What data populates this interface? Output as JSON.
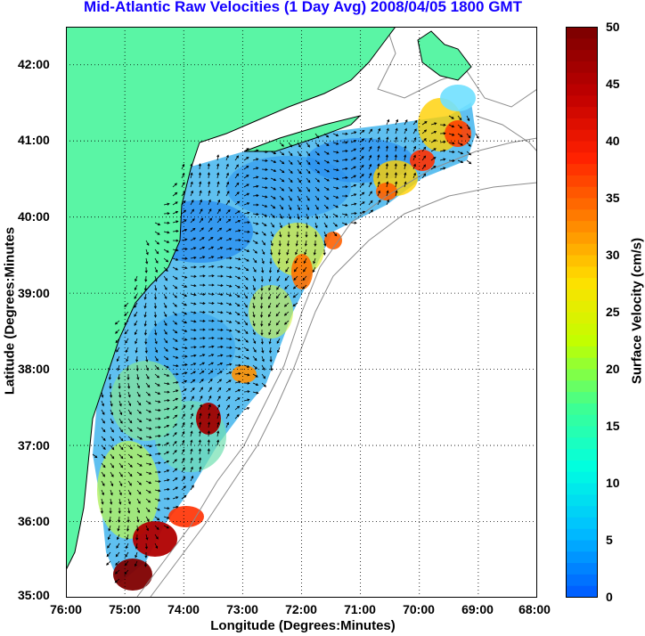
{
  "title": "Mid-Atlantic Raw Velocities (1 Day Avg) 2008/04/05 1800 GMT",
  "xlabel": "Longitude (Degrees:Minutes)",
  "ylabel": "Latitude (Degrees:Minutes",
  "colorbar_label": "Surface Velocity (cm/s)",
  "x_ticks": [
    "76:00",
    "75:00",
    "74:00",
    "73:00",
    "72:00",
    "71:00",
    "70:00",
    "69:00",
    "68:00"
  ],
  "y_ticks": [
    "42:00",
    "41:00",
    "40:00",
    "39:00",
    "38:00",
    "37:00",
    "36:00",
    "35:00"
  ],
  "colorbar_ticks": [
    "50",
    "45",
    "40",
    "35",
    "30",
    "25",
    "20",
    "15",
    "10",
    "5",
    "0"
  ],
  "colors": {
    "title": "#1400ff",
    "land": "#5af5a5",
    "coast": "#000000",
    "bathymetry": "#8c8c8c",
    "grid": "#000000",
    "vectors": "#000000"
  },
  "colorscale": [
    "#0060ff",
    "#00c0ff",
    "#00ffe0",
    "#40ff90",
    "#c0ff00",
    "#ffe000",
    "#ff8000",
    "#ff2000",
    "#c00000",
    "#800000"
  ],
  "chart_data": {
    "type": "heatmap",
    "xlim": [
      -76,
      -68
    ],
    "ylim": [
      35,
      42.5
    ],
    "clim": [
      0,
      50
    ],
    "grid": true,
    "x_axis_label": "Longitude (Degrees:Minutes)",
    "y_axis_label": "Latitude (Degrees:Minutes",
    "colorbar_label": "Surface Velocity (cm/s)",
    "colorbar_range": [
      0,
      50
    ]
  }
}
